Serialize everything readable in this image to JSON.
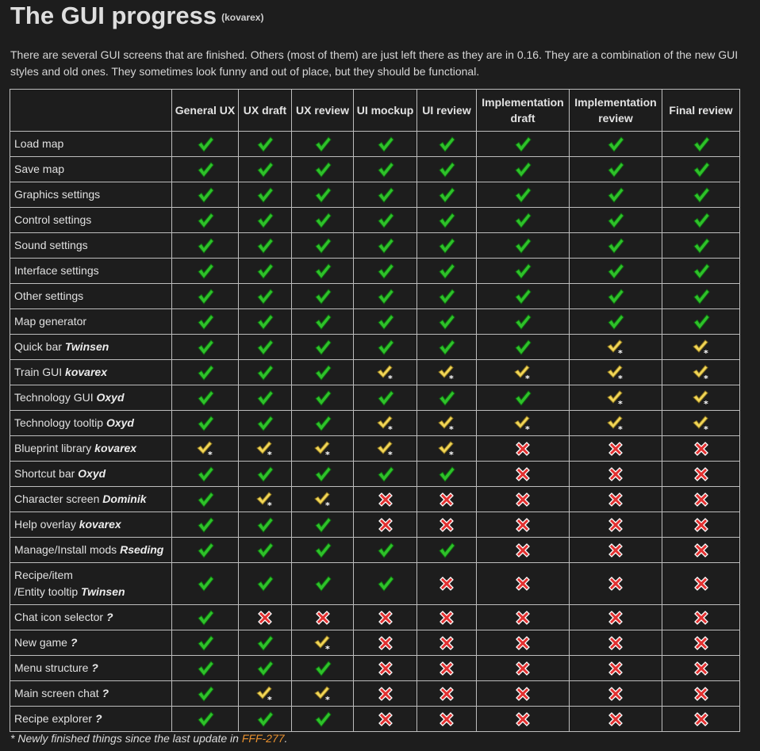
{
  "title": "The GUI progress",
  "author": "(kovarex)",
  "intro": "There are several GUI screens that are finished. Others (most of them) are just left there as they are in 0.16. They are a combination of the new GUI styles and old ones. They sometimes look funny and out of place, but they should be functional.",
  "columns": [
    "General UX",
    "UX draft",
    "UX review",
    "UI mockup",
    "UI review",
    "Implementation draft",
    "Implementation review",
    "Final review"
  ],
  "icons": {
    "done": "green-check-icon",
    "new": "yellow-check-new-icon",
    "todo": "red-cross-icon"
  },
  "colors": {
    "done": "#2fc12a",
    "new": "#f2d657",
    "todo": "#e23030",
    "link": "#e8902e"
  },
  "rows": [
    {
      "name": "Load map",
      "owner": "",
      "status": [
        "done",
        "done",
        "done",
        "done",
        "done",
        "done",
        "done",
        "done"
      ]
    },
    {
      "name": "Save map",
      "owner": "",
      "status": [
        "done",
        "done",
        "done",
        "done",
        "done",
        "done",
        "done",
        "done"
      ]
    },
    {
      "name": "Graphics settings",
      "owner": "",
      "status": [
        "done",
        "done",
        "done",
        "done",
        "done",
        "done",
        "done",
        "done"
      ]
    },
    {
      "name": "Control settings",
      "owner": "",
      "status": [
        "done",
        "done",
        "done",
        "done",
        "done",
        "done",
        "done",
        "done"
      ]
    },
    {
      "name": "Sound settings",
      "owner": "",
      "status": [
        "done",
        "done",
        "done",
        "done",
        "done",
        "done",
        "done",
        "done"
      ]
    },
    {
      "name": "Interface settings",
      "owner": "",
      "status": [
        "done",
        "done",
        "done",
        "done",
        "done",
        "done",
        "done",
        "done"
      ]
    },
    {
      "name": "Other settings",
      "owner": "",
      "status": [
        "done",
        "done",
        "done",
        "done",
        "done",
        "done",
        "done",
        "done"
      ]
    },
    {
      "name": "Map generator",
      "owner": "",
      "status": [
        "done",
        "done",
        "done",
        "done",
        "done",
        "done",
        "done",
        "done"
      ]
    },
    {
      "name": "Quick bar",
      "owner": "Twinsen",
      "status": [
        "done",
        "done",
        "done",
        "done",
        "done",
        "done",
        "new",
        "new"
      ]
    },
    {
      "name": "Train GUI",
      "owner": "kovarex",
      "status": [
        "done",
        "done",
        "done",
        "new",
        "new",
        "new",
        "new",
        "new"
      ]
    },
    {
      "name": "Technology GUI",
      "owner": "Oxyd",
      "status": [
        "done",
        "done",
        "done",
        "done",
        "done",
        "done",
        "new",
        "new"
      ]
    },
    {
      "name": "Technology tooltip",
      "owner": "Oxyd",
      "status": [
        "done",
        "done",
        "done",
        "new",
        "new",
        "new",
        "new",
        "new"
      ]
    },
    {
      "name": "Blueprint library",
      "owner": "kovarex",
      "status": [
        "new",
        "new",
        "new",
        "new",
        "new",
        "todo",
        "todo",
        "todo"
      ]
    },
    {
      "name": "Shortcut bar",
      "owner": "Oxyd",
      "status": [
        "done",
        "done",
        "done",
        "done",
        "done",
        "todo",
        "todo",
        "todo"
      ]
    },
    {
      "name": "Character screen",
      "owner": "Dominik",
      "status": [
        "done",
        "new",
        "new",
        "todo",
        "todo",
        "todo",
        "todo",
        "todo"
      ]
    },
    {
      "name": "Help overlay",
      "owner": "kovarex",
      "status": [
        "done",
        "done",
        "done",
        "todo",
        "todo",
        "todo",
        "todo",
        "todo"
      ]
    },
    {
      "name": "Manage/Install mods",
      "owner": "Rseding",
      "status": [
        "done",
        "done",
        "done",
        "done",
        "done",
        "todo",
        "todo",
        "todo"
      ]
    },
    {
      "name": "Recipe/item",
      "name2": "/Entity tooltip",
      "owner": "Twinsen",
      "status": [
        "done",
        "done",
        "done",
        "done",
        "todo",
        "todo",
        "todo",
        "todo"
      ]
    },
    {
      "name": "Chat icon selector",
      "owner": "?",
      "status": [
        "done",
        "todo",
        "todo",
        "todo",
        "todo",
        "todo",
        "todo",
        "todo"
      ]
    },
    {
      "name": "New game",
      "owner": "?",
      "status": [
        "done",
        "done",
        "new",
        "todo",
        "todo",
        "todo",
        "todo",
        "todo"
      ]
    },
    {
      "name": "Menu structure",
      "owner": "?",
      "status": [
        "done",
        "done",
        "done",
        "todo",
        "todo",
        "todo",
        "todo",
        "todo"
      ]
    },
    {
      "name": "Main screen chat",
      "owner": "?",
      "status": [
        "done",
        "new",
        "new",
        "todo",
        "todo",
        "todo",
        "todo",
        "todo"
      ]
    },
    {
      "name": "Recipe explorer",
      "owner": "?",
      "status": [
        "done",
        "done",
        "done",
        "todo",
        "todo",
        "todo",
        "todo",
        "todo"
      ]
    }
  ],
  "footnote": {
    "text": "* Newly finished things since the last update in ",
    "link": "FFF-277",
    "end": "."
  }
}
